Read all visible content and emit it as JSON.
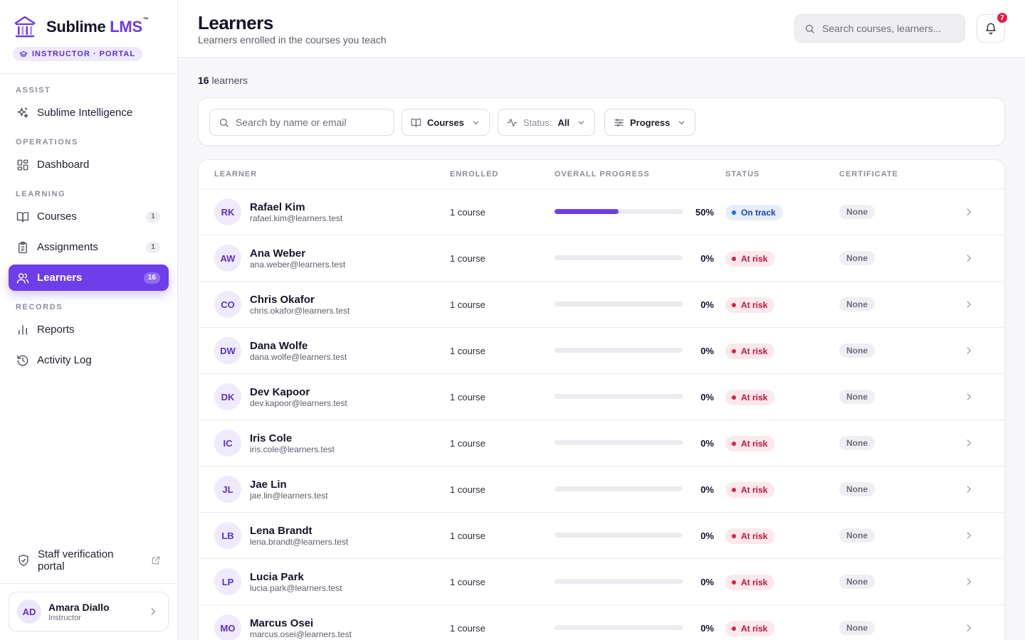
{
  "brand": {
    "name_main": "Sublime ",
    "name_accent": "LMS",
    "trademark": "™",
    "portal_badge": "INSTRUCTOR · PORTAL",
    "accent_color": "#6e3eea"
  },
  "sidebar": {
    "sections": {
      "assist": "ASSIST",
      "operations": "OPERATIONS",
      "learning": "LEARNING",
      "records": "RECORDS"
    },
    "items": {
      "intelligence": {
        "label": "Sublime Intelligence",
        "icon": "sparkles-icon"
      },
      "dashboard": {
        "label": "Dashboard",
        "icon": "grid-icon"
      },
      "courses": {
        "label": "Courses",
        "icon": "book-icon",
        "count": "1"
      },
      "assignments": {
        "label": "Assignments",
        "icon": "clipboard-icon",
        "count": "1"
      },
      "learners": {
        "label": "Learners",
        "icon": "users-icon",
        "count": "16",
        "active": true
      },
      "reports": {
        "label": "Reports",
        "icon": "bar-chart-icon"
      },
      "activity": {
        "label": "Activity Log",
        "icon": "history-icon"
      }
    },
    "staff_link": {
      "label": "Staff verification portal",
      "icon": "shield-check-icon"
    },
    "user": {
      "initials": "AD",
      "name": "Amara Diallo",
      "role": "Instructor"
    }
  },
  "header": {
    "title": "Learners",
    "subtitle": "Learners enrolled in the courses you teach",
    "search_placeholder": "Search courses, learners...",
    "notification_count": "7"
  },
  "main": {
    "count_number": "16",
    "count_label": " learners",
    "filters": {
      "search_placeholder": "Search by name or email",
      "courses_label": "Courses",
      "status_label": "Status:",
      "status_value": "All",
      "progress_label": "Progress"
    },
    "table": {
      "headers": {
        "learner": "LEARNER",
        "enrolled": "ENROLLED",
        "progress": "OVERALL PROGRESS",
        "status": "STATUS",
        "certificate": "CERTIFICATE"
      },
      "rows": [
        {
          "initials": "RK",
          "name": "Rafael Kim",
          "email": "rafael.kim@learners.test",
          "enrolled": "1 course",
          "progress": 50,
          "progress_label": "50%",
          "status": "On track",
          "status_kind": "ok",
          "certificate": "None"
        },
        {
          "initials": "AW",
          "name": "Ana Weber",
          "email": "ana.weber@learners.test",
          "enrolled": "1 course",
          "progress": 0,
          "progress_label": "0%",
          "status": "At risk",
          "status_kind": "risk",
          "certificate": "None"
        },
        {
          "initials": "CO",
          "name": "Chris Okafor",
          "email": "chris.okafor@learners.test",
          "enrolled": "1 course",
          "progress": 0,
          "progress_label": "0%",
          "status": "At risk",
          "status_kind": "risk",
          "certificate": "None"
        },
        {
          "initials": "DW",
          "name": "Dana Wolfe",
          "email": "dana.wolfe@learners.test",
          "enrolled": "1 course",
          "progress": 0,
          "progress_label": "0%",
          "status": "At risk",
          "status_kind": "risk",
          "certificate": "None"
        },
        {
          "initials": "DK",
          "name": "Dev Kapoor",
          "email": "dev.kapoor@learners.test",
          "enrolled": "1 course",
          "progress": 0,
          "progress_label": "0%",
          "status": "At risk",
          "status_kind": "risk",
          "certificate": "None"
        },
        {
          "initials": "IC",
          "name": "Iris Cole",
          "email": "iris.cole@learners.test",
          "enrolled": "1 course",
          "progress": 0,
          "progress_label": "0%",
          "status": "At risk",
          "status_kind": "risk",
          "certificate": "None"
        },
        {
          "initials": "JL",
          "name": "Jae Lin",
          "email": "jae.lin@learners.test",
          "enrolled": "1 course",
          "progress": 0,
          "progress_label": "0%",
          "status": "At risk",
          "status_kind": "risk",
          "certificate": "None"
        },
        {
          "initials": "LB",
          "name": "Lena Brandt",
          "email": "lena.brandt@learners.test",
          "enrolled": "1 course",
          "progress": 0,
          "progress_label": "0%",
          "status": "At risk",
          "status_kind": "risk",
          "certificate": "None"
        },
        {
          "initials": "LP",
          "name": "Lucia Park",
          "email": "lucia.park@learners.test",
          "enrolled": "1 course",
          "progress": 0,
          "progress_label": "0%",
          "status": "At risk",
          "status_kind": "risk",
          "certificate": "None"
        },
        {
          "initials": "MO",
          "name": "Marcus Osei",
          "email": "marcus.osei@learners.test",
          "enrolled": "1 course",
          "progress": 0,
          "progress_label": "0%",
          "status": "At risk",
          "status_kind": "risk",
          "certificate": "None"
        }
      ]
    }
  }
}
